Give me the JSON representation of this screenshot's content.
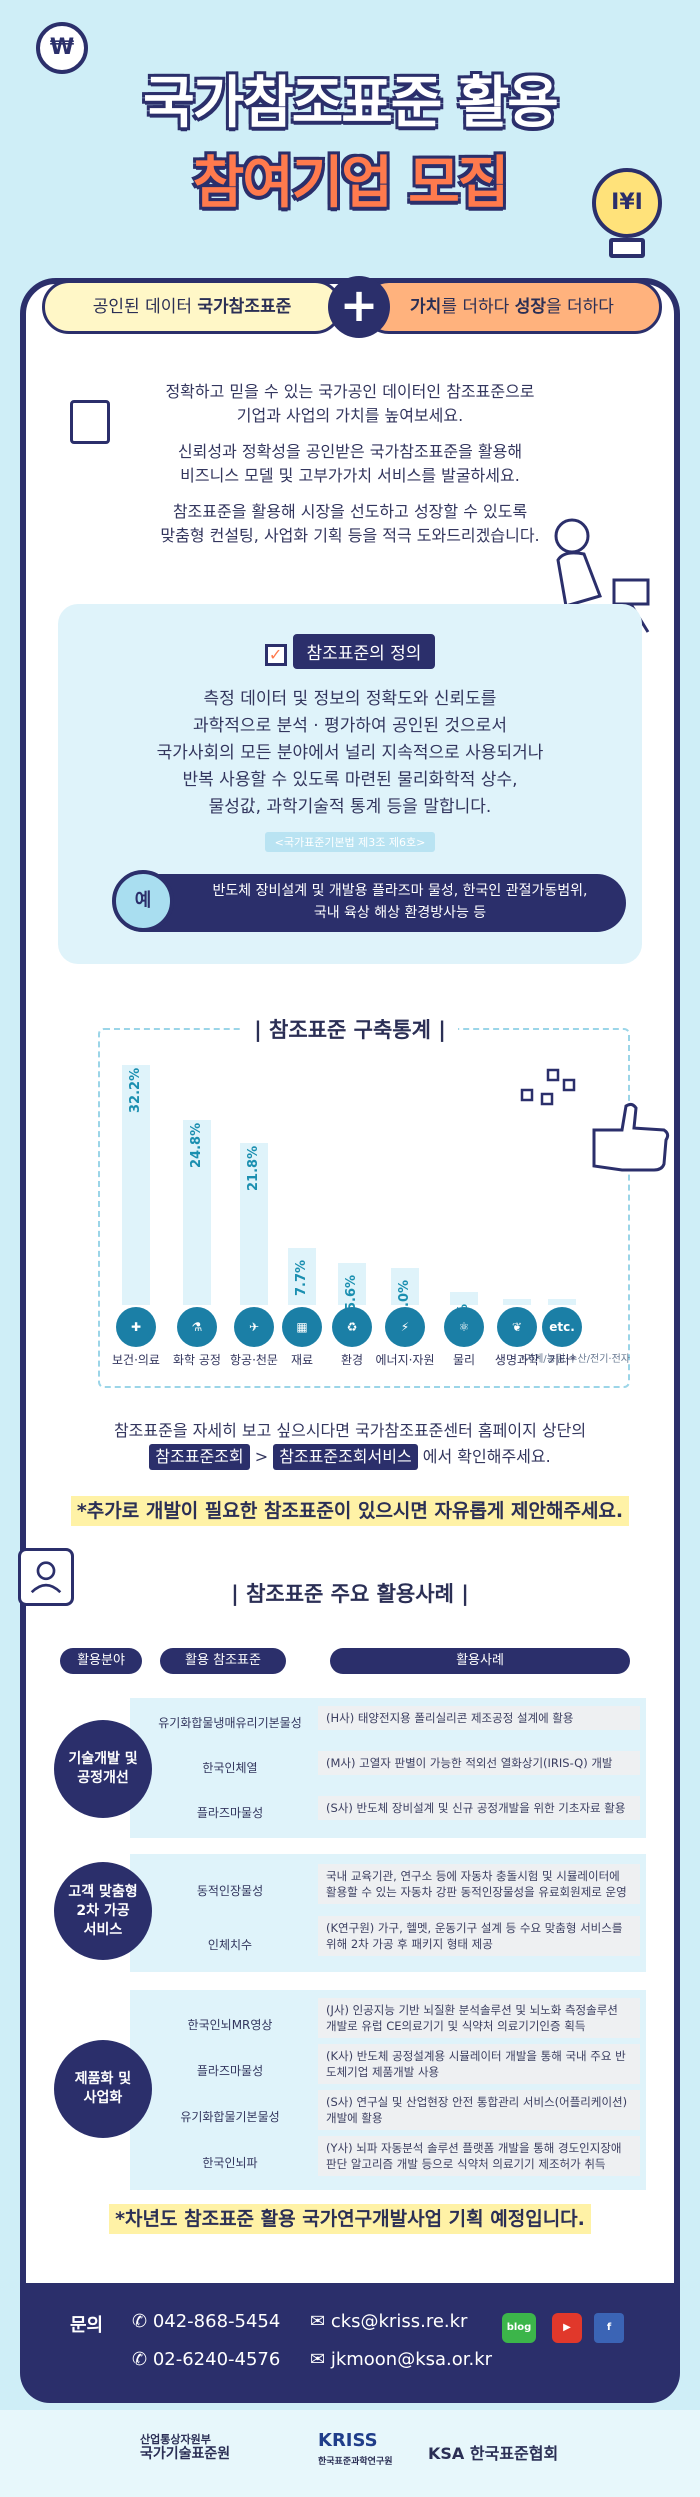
{
  "hero": {
    "title_line1": "국가참조표준 활용",
    "title_line2": "참여기업 모집",
    "coin_symbol": "₩",
    "bulb_symbol": "I¥I"
  },
  "banner": {
    "left_prefix": "공인된 데이터 ",
    "left_bold": "국가참조표준",
    "plus": "+",
    "right_bold1": "가치",
    "right_mid": "를 더하다 ",
    "right_bold2": "성장",
    "right_suffix": "을 더하다"
  },
  "intro": {
    "p1_line1": "정확하고 믿을 수 있는 국가공인 데이터인 참조표준으로",
    "p1_line2": "기업과 사업의 가치를 높여보세요.",
    "p2_line1": "신뢰성과 정확성을 공인받은 국가참조표준을 활용해",
    "p2_line2": "비즈니스 모델 및 고부가가치 서비스를 발굴하세요.",
    "p3_line1": "참조표준을 활용해 시장을 선도하고 성장할 수 있도록",
    "p3_line2": "맞춤형 컨설팅, 사업화 기획 등을 적극 도와드리겠습니다."
  },
  "definition": {
    "title": "참조표준의 정의",
    "line1": "측정 데이터 및 정보의 정확도와 신뢰도를",
    "line2": "과학적으로 분석 · 평가하여 공인된 것으로서",
    "line3": "국가사회의 모든 분야에서 널리 지속적으로 사용되거나",
    "line4": "반복 사용할 수 있도록 마련된 물리화학적 상수,",
    "line5": "물성값, 과학기술적 통계 등을 말합니다.",
    "source": "<국가표준기본법 제3조 제6호>",
    "example_badge": "예",
    "example_line1": "반도체 장비설계 및 개발용 플라즈마 물성, 한국인 관절가동범위,",
    "example_line2": "국내 육상 해상 환경방사능 등"
  },
  "stats": {
    "title": "| 참조표준 구축통계 |",
    "note": "*기계/농림·수산/전기·전자"
  },
  "chart_data": {
    "type": "bar",
    "categories": [
      "보건·의료",
      "화학 공정",
      "항공·천문",
      "재료",
      "환경",
      "에너지·자원",
      "물리",
      "생명과학",
      "기타*"
    ],
    "values": [
      32.2,
      24.8,
      21.8,
      7.7,
      5.6,
      5.0,
      1.8,
      0.6,
      0.5
    ],
    "value_labels": [
      "32.2%",
      "24.8%",
      "21.8%",
      "7.7%",
      "5.6%",
      "5.0%",
      "1.8%",
      "0.6%",
      "0.5%"
    ],
    "title": "참조표준 구축통계",
    "unit": "%"
  },
  "lookup": {
    "line1": "참조표준을 자세히 보고 싶으시다면 국가참조표준센터 홈페이지 상단의",
    "tag1": "참조표준조회",
    "sep": " > ",
    "tag2": "참조표준조회서비스",
    "suffix": " 에서 확인해주세요."
  },
  "suggest": "*추가로 개발이 필요한 참조표준이 있으시면 자유롭게 제안해주세요.",
  "cases": {
    "title": "| 참조표준 주요 활용사례 |",
    "headers": [
      "활용분야",
      "활용 참조표준",
      "활용사례"
    ],
    "groups": [
      {
        "field_line1": "기술개발 및",
        "field_line2": "공정개선",
        "rows": [
          {
            "std": "유기화합물냉매유리기본물성",
            "case": "(H사) 태양전지용 폴리실리콘 제조공정 설계에 활용"
          },
          {
            "std": "한국인체열",
            "case": "(M사) 고열자 판별이 가능한 적외선 열화상기(IRIS-Q) 개발"
          },
          {
            "std": "플라즈마물성",
            "case": "(S사) 반도체 장비설계 및 신규 공정개발을 위한 기초자료 활용"
          }
        ]
      },
      {
        "field_line1": "고객 맞춤형",
        "field_line2": "2차 가공",
        "field_line3": "서비스",
        "rows": [
          {
            "std": "동적인장물성",
            "case": "국내 교육기관, 연구소 등에 자동차 충돌시험 및 시뮬레이터에 활용할 수 있는 자동차 강판 동적인장물성을 유료회원제로 운영"
          },
          {
            "std": "인체치수",
            "case": "(K연구원) 가구, 헬멧, 운동기구 설계 등 수요 맞춤형 서비스를 위해 2차 가공 후 패키지 형태 제공"
          }
        ]
      },
      {
        "field_line1": "제품화 및",
        "field_line2": "사업화",
        "rows": [
          {
            "std": "한국인뇌MR영상",
            "case": "(J사) 인공지능 기반 뇌질환 분석솔루션 및 뇌노화 측정솔루션 개발로 유럽 CE의료기기 및 식약처 의료기기인증 획득"
          },
          {
            "std": "플라즈마물성",
            "case": "(K사) 반도체 공정설계용 시뮬레이터 개발을 통해 국내 주요 반도체기업 제품개발 사용"
          },
          {
            "std": "유기화합물기본물성",
            "case": "(S사) 연구실 및 산업현장 안전 통합관리 서비스(어플리케이션) 개발에 활용"
          },
          {
            "std": "한국인뇌파",
            "case": "(Y사) 뇌파 자동분석 솔루션 플랫폼 개발을 통해 경도인지장애 판단 알고리즘 개발 등으로 식약처 의료기기 제조허가 취득"
          }
        ]
      }
    ]
  },
  "next_year": "*차년도 참조표준 활용 국가연구개발사업 기획 예정입니다.",
  "contact": {
    "label": "문의",
    "phone1": "042-868-5454",
    "phone2": "02-6240-4576",
    "email1": "cks@kriss.re.kr",
    "email2": "jkmoon@ksa.or.kr",
    "sns": [
      "blog",
      "▶",
      "f"
    ]
  },
  "footer": {
    "logo1_line1": "산업통상자원부",
    "logo1_line2": "국가기술표준원",
    "logo2_line1": "KRISS",
    "logo2_line2": "한국표준과학연구원",
    "logo3": "KSA 한국표준협회"
  },
  "colors": {
    "navy": "#2b2f6b",
    "orange": "#ff7a4d",
    "sky": "#cfeef7",
    "light_blue": "#dff3fa",
    "teal": "#1b7fa6",
    "yellow": "#fff2a6"
  }
}
